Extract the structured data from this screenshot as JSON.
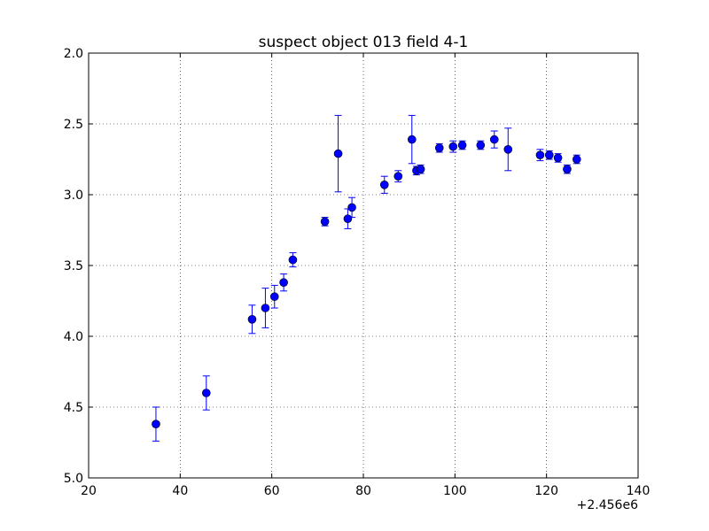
{
  "chart_data": {
    "type": "scatter",
    "title": "suspect object 013 field 4-1",
    "xlabel": "",
    "ylabel": "",
    "x_offset_label": "+2.456e6",
    "xlim": [
      20,
      140
    ],
    "ylim": [
      5.0,
      2.0
    ],
    "y_inverted": true,
    "grid": true,
    "x_ticks": [
      20,
      40,
      60,
      80,
      100,
      120,
      140
    ],
    "x_tick_labels": [
      "20",
      "40",
      "60",
      "80",
      "100",
      "120",
      "140"
    ],
    "y_ticks": [
      2.0,
      2.5,
      3.0,
      3.5,
      4.0,
      4.5,
      5.0
    ],
    "y_tick_labels": [
      "2.0",
      "2.5",
      "3.0",
      "3.5",
      "4.0",
      "4.5",
      "5.0"
    ],
    "marker_color": "#0000ff",
    "series": [
      {
        "points": [
          {
            "x": 34.7,
            "y": 4.62,
            "err": 0.12
          },
          {
            "x": 45.7,
            "y": 4.4,
            "err": 0.12
          },
          {
            "x": 55.7,
            "y": 3.88,
            "err": 0.1
          },
          {
            "x": 58.6,
            "y": 3.8,
            "err": 0.14
          },
          {
            "x": 60.6,
            "y": 3.72,
            "err": 0.08
          },
          {
            "x": 62.6,
            "y": 3.62,
            "err": 0.06
          },
          {
            "x": 64.6,
            "y": 3.46,
            "err": 0.05
          },
          {
            "x": 71.6,
            "y": 3.19,
            "err": 0.03
          },
          {
            "x": 74.5,
            "y": 2.71,
            "err": 0.27
          },
          {
            "x": 76.6,
            "y": 3.17,
            "err": 0.07
          },
          {
            "x": 77.5,
            "y": 3.09,
            "err": 0.07
          },
          {
            "x": 84.6,
            "y": 2.93,
            "err": 0.06
          },
          {
            "x": 87.6,
            "y": 2.87,
            "err": 0.04
          },
          {
            "x": 90.6,
            "y": 2.61,
            "err": 0.17
          },
          {
            "x": 91.6,
            "y": 2.83,
            "err": 0.03
          },
          {
            "x": 92.5,
            "y": 2.82,
            "err": 0.03
          },
          {
            "x": 96.6,
            "y": 2.67,
            "err": 0.03
          },
          {
            "x": 99.6,
            "y": 2.66,
            "err": 0.04
          },
          {
            "x": 101.6,
            "y": 2.65,
            "err": 0.03
          },
          {
            "x": 105.6,
            "y": 2.65,
            "err": 0.03
          },
          {
            "x": 108.6,
            "y": 2.61,
            "err": 0.06
          },
          {
            "x": 111.6,
            "y": 2.68,
            "err": 0.15
          },
          {
            "x": 118.6,
            "y": 2.72,
            "err": 0.04
          },
          {
            "x": 120.6,
            "y": 2.72,
            "err": 0.03
          },
          {
            "x": 122.5,
            "y": 2.74,
            "err": 0.03
          },
          {
            "x": 124.5,
            "y": 2.82,
            "err": 0.03
          },
          {
            "x": 126.6,
            "y": 2.75,
            "err": 0.03
          }
        ]
      }
    ]
  }
}
